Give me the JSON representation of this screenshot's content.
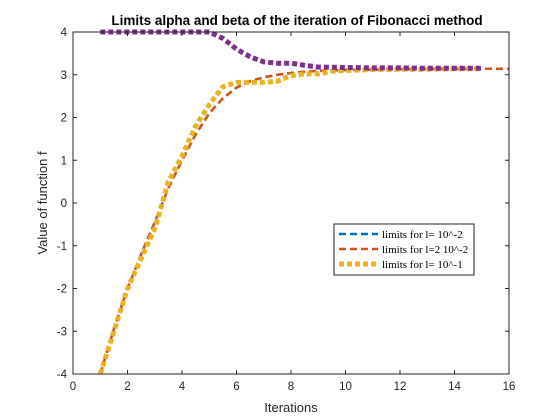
{
  "chart_data": {
    "type": "line",
    "title": "Limits alpha and beta of the iteration of Fibonacci method",
    "xlabel": "Iterations",
    "ylabel": "Value of function f",
    "xlim": [
      0,
      16
    ],
    "ylim": [
      -4,
      4
    ],
    "xticks": [
      "0",
      "2",
      "4",
      "6",
      "8",
      "10",
      "12",
      "14",
      "16"
    ],
    "yticks": [
      "-4",
      "-3",
      "-2",
      "-1",
      "0",
      "1",
      "2",
      "3",
      "4"
    ],
    "grid": false,
    "legend_position": "center-right",
    "legend": [
      {
        "label": "limits for l= 10^-2",
        "color": "#0072BD",
        "style": "dashed"
      },
      {
        "label": "limits for l=2 10^-2",
        "color": "#D95319",
        "style": "dashed"
      },
      {
        "label": "limits for l= 10^-1",
        "color": "#EDB120",
        "style": "dashed-thick"
      }
    ],
    "series": [
      {
        "color": "#0072BD",
        "x": [
          1,
          1.5,
          2,
          2.5,
          3,
          3.5,
          4,
          4.5,
          5,
          5.5,
          6,
          6.5,
          7,
          7.5,
          8,
          8.5,
          9,
          10,
          11,
          12,
          13,
          14,
          15,
          16
        ],
        "y": [
          -4,
          -2.95,
          -2.0,
          -1.2,
          -0.45,
          0.35,
          1.0,
          1.6,
          2.1,
          2.45,
          2.7,
          2.85,
          2.94,
          3.0,
          3.04,
          3.07,
          3.09,
          3.11,
          3.12,
          3.13,
          3.135,
          3.14,
          3.14,
          3.142
        ]
      },
      {
        "color": "#D95319",
        "x": [
          1,
          1.5,
          2,
          2.5,
          3,
          3.5,
          4,
          4.5,
          5,
          5.5,
          6,
          6.5,
          7,
          7.5,
          8,
          8.5,
          9,
          10,
          11,
          12,
          13,
          14,
          15,
          16
        ],
        "y": [
          -4,
          -2.95,
          -2.0,
          -1.2,
          -0.45,
          0.35,
          1.0,
          1.6,
          2.1,
          2.45,
          2.7,
          2.85,
          2.94,
          3.0,
          3.04,
          3.07,
          3.09,
          3.11,
          3.12,
          3.13,
          3.135,
          3.14,
          3.14,
          3.142
        ]
      },
      {
        "color": "#EDB120",
        "x": [
          1,
          1.5,
          2,
          2.5,
          3,
          3.5,
          4,
          4.5,
          5,
          5.5,
          6,
          6.5,
          7,
          7.5,
          8,
          8.5,
          9,
          9.5,
          10,
          11,
          12,
          13,
          14,
          15
        ],
        "y": [
          -4,
          -3.0,
          -2.0,
          -1.3,
          -0.6,
          0.5,
          1.1,
          1.8,
          2.3,
          2.72,
          2.82,
          2.82,
          2.82,
          2.85,
          2.98,
          3.02,
          3.02,
          3.08,
          3.1,
          3.12,
          3.13,
          3.13,
          3.14,
          3.14
        ]
      },
      {
        "color": "#7E2F8E",
        "x": [
          1,
          2,
          3,
          4,
          5,
          5.5,
          6,
          6.5,
          7,
          7.5,
          8,
          8.5,
          9,
          10,
          11,
          12,
          13,
          14,
          15
        ],
        "y": [
          4.0,
          4.0,
          4.0,
          4.0,
          4.0,
          3.85,
          3.6,
          3.42,
          3.3,
          3.27,
          3.27,
          3.22,
          3.18,
          3.17,
          3.16,
          3.16,
          3.15,
          3.15,
          3.15
        ]
      }
    ]
  }
}
